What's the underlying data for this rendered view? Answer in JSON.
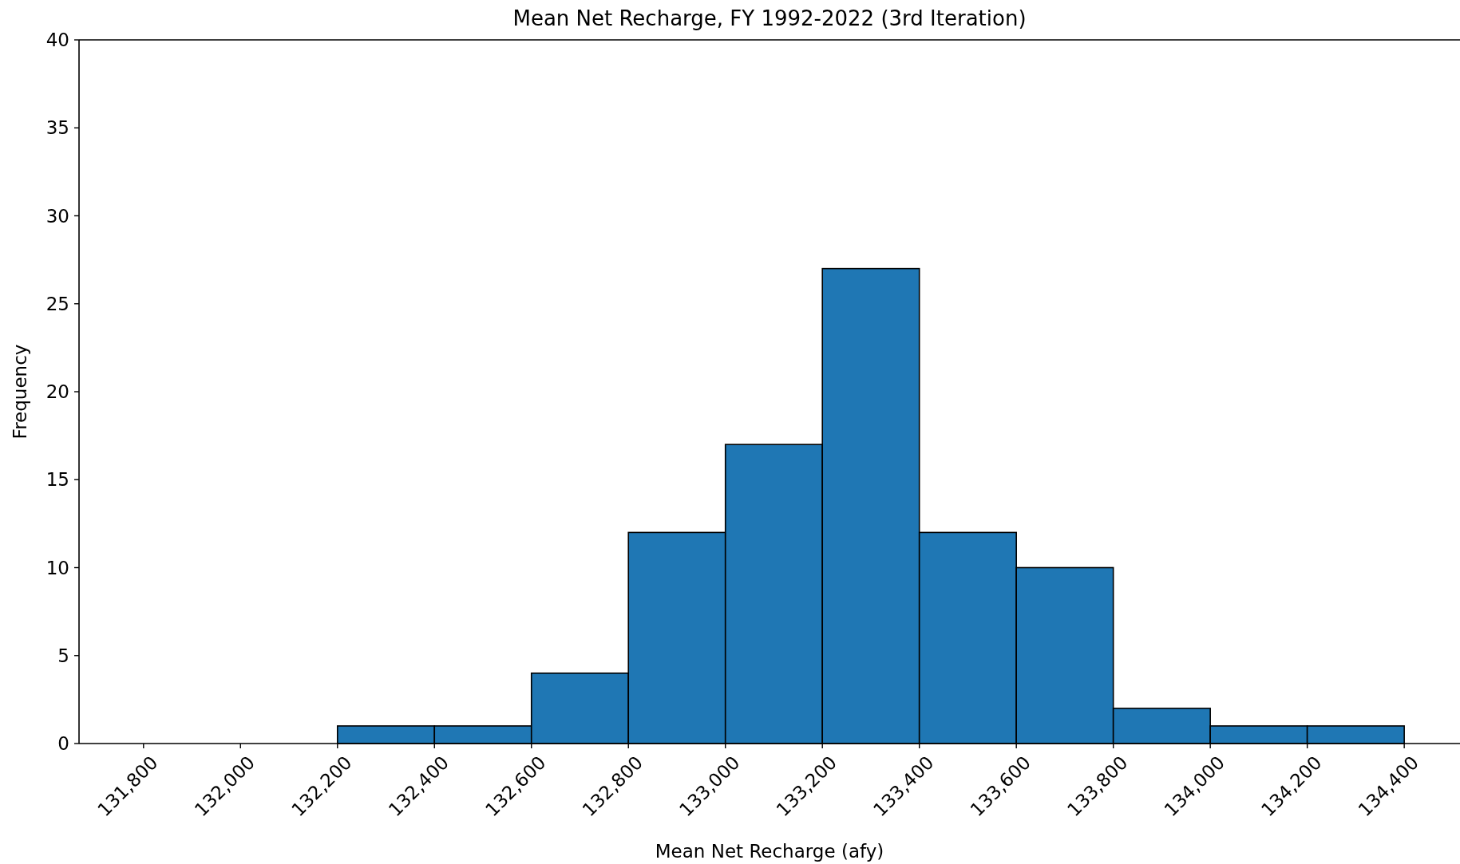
{
  "chart_data": {
    "type": "histogram",
    "title": "Mean Net Recharge, FY 1992-2022 (3rd Iteration)",
    "xlabel": "Mean Net Recharge (afy)",
    "ylabel": "Frequency",
    "bins": [
      131800,
      132000,
      132200,
      132400,
      132600,
      132800,
      133000,
      133200,
      133400,
      133600,
      133800,
      134000,
      134200,
      134400
    ],
    "values": [
      0,
      0,
      1,
      1,
      4,
      12,
      17,
      27,
      12,
      10,
      2,
      1,
      1
    ],
    "color": "#1f77b4",
    "xlim": [
      131667,
      134515
    ],
    "ylim": [
      0,
      40
    ],
    "xticks": [
      {
        "value": 131800,
        "label": "131,800"
      },
      {
        "value": 132000,
        "label": "132,000"
      },
      {
        "value": 132200,
        "label": "132,200"
      },
      {
        "value": 132400,
        "label": "132,400"
      },
      {
        "value": 132600,
        "label": "132,600"
      },
      {
        "value": 132800,
        "label": "132,800"
      },
      {
        "value": 133000,
        "label": "133,000"
      },
      {
        "value": 133200,
        "label": "133,200"
      },
      {
        "value": 133400,
        "label": "133,400"
      },
      {
        "value": 133600,
        "label": "133,600"
      },
      {
        "value": 133800,
        "label": "133,800"
      },
      {
        "value": 134000,
        "label": "134,000"
      },
      {
        "value": 134200,
        "label": "134,200"
      },
      {
        "value": 134400,
        "label": "134,400"
      }
    ],
    "yticks": [
      0,
      5,
      10,
      15,
      20,
      25,
      30,
      35,
      40
    ]
  }
}
